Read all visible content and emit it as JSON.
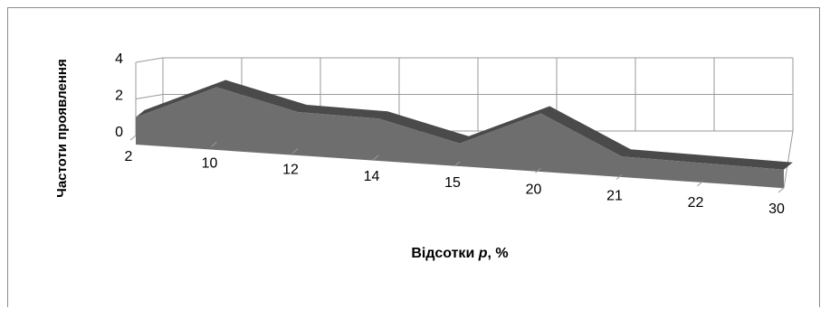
{
  "chart_data": {
    "type": "area",
    "view": "3d",
    "categories": [
      "2",
      "10",
      "12",
      "14",
      "15",
      "20",
      "21",
      "22",
      "30"
    ],
    "series": [
      {
        "values": [
          1,
          3,
          2,
          2,
          1,
          3,
          1,
          1,
          1
        ]
      }
    ],
    "xlabel": "Відсотки p, %",
    "xlabel_prefix": "Відсотки ",
    "xlabel_var": "p",
    "xlabel_suffix": ", %",
    "ylabel": "Частоти проявлення",
    "ylim": [
      0,
      4
    ],
    "yticks": [
      0,
      2,
      4
    ],
    "grid": true,
    "legend": "none",
    "colors": {
      "series_front": "#6e6e6e",
      "series_top": "#4a4a4a",
      "grid": "#9a9a9a"
    }
  }
}
